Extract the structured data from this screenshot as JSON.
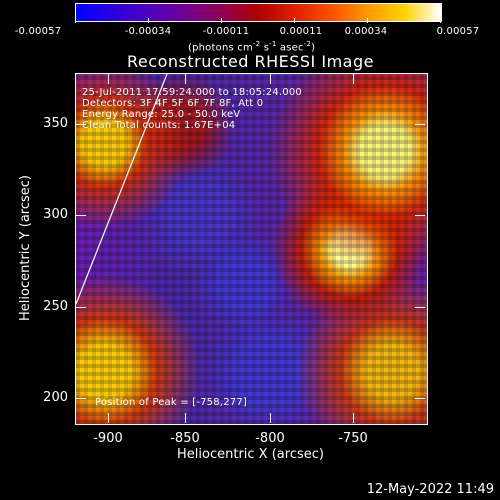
{
  "colorbar": {
    "ticks": [
      "-0.00057",
      "-0.00034",
      "-0.00011",
      "0.00011",
      "0.00034",
      "0.00057"
    ],
    "units_prefix": "(photons cm",
    "units_exp1": "-2",
    "units_mid": " s",
    "units_exp2": "-1",
    "units_mid2": " asec",
    "units_exp3": "-2",
    "units_suffix": ")"
  },
  "plot": {
    "title": "Reconstructed RHESSI Image",
    "info_lines": [
      "25-Jul-2011 17:59:24.000 to 18:05:24.000",
      "Detectors: 3F 4F 5F 6F 7F 8F, Att 0",
      "Energy Range: 25.0 - 50.0 keV",
      "Clean    Total counts: 1.67E+04"
    ],
    "peak_text": "Position of Peak = [-758,277]",
    "xaxis": {
      "label": "Heliocentric X (arcsec)",
      "ticks": [
        "-900",
        "-850",
        "-800",
        "-750"
      ]
    },
    "yaxis": {
      "label": "Heliocentric Y (arcsec)",
      "ticks": [
        "350",
        "300",
        "250",
        "200"
      ]
    }
  },
  "footer": {
    "timestamp": "12-May-2022 11:49"
  }
}
